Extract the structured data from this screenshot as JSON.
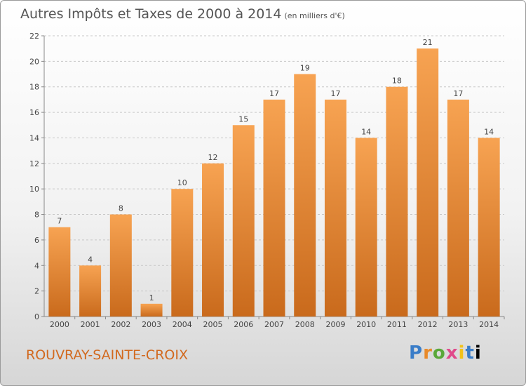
{
  "header": {
    "title": "Autres Impôts et Taxes de 2000 à 2014",
    "unit": "(en milliers d'€)"
  },
  "footer": {
    "commune": "ROUVRAY-SAINTE-CROIX",
    "logo": [
      "P",
      "r",
      "o",
      "x",
      "i",
      "t",
      "i"
    ]
  },
  "colors": {
    "bar_top": "#f7a352",
    "bar_bottom": "#c96a1c",
    "grid": "#c8c8c8",
    "commune": "#d2691e"
  },
  "chart_data": {
    "type": "bar",
    "title": "Autres Impôts et Taxes de 2000 à 2014",
    "subtitle": "(en milliers d'€)",
    "categories": [
      "2000",
      "2001",
      "2002",
      "2003",
      "2004",
      "2005",
      "2006",
      "2007",
      "2008",
      "2009",
      "2010",
      "2011",
      "2012",
      "2013",
      "2014"
    ],
    "values": [
      7,
      4,
      8,
      1,
      10,
      12,
      15,
      17,
      19,
      17,
      14,
      18,
      21,
      17,
      14
    ],
    "ylim": [
      0,
      22
    ],
    "yticks": [
      0,
      2,
      4,
      6,
      8,
      10,
      12,
      14,
      16,
      18,
      20,
      22
    ],
    "grid": true,
    "xlabel": "",
    "ylabel": ""
  }
}
